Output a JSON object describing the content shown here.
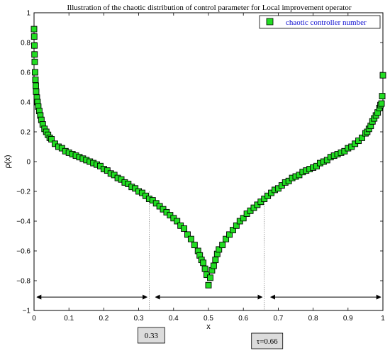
{
  "chart_data": {
    "type": "scatter",
    "title": "Illustration of the chaotic distribution of control parameter for Local improvement operator",
    "xlabel": "x",
    "ylabel": "ρ(x)",
    "xlim": [
      0,
      1
    ],
    "ylim": [
      -1,
      1
    ],
    "xticks": [
      "0",
      "0.1",
      "0.2",
      "0.3",
      "0.4",
      "0.5",
      "0.6",
      "0.7",
      "0.8",
      "0.9",
      "1"
    ],
    "yticks": [
      "1",
      "0.8",
      "0.6",
      "0.4",
      "0.2",
      "0",
      "−0.2",
      "−0.4",
      "−0.6",
      "−0.8",
      "−1"
    ],
    "grid": false,
    "legend_position": "top-right",
    "series": [
      {
        "name": "chaotic controller number",
        "marker": "square",
        "color": "#22dd22",
        "edge_color": "#000000",
        "x": [
          0.0,
          0.0005,
          0.001,
          0.0015,
          0.002,
          0.003,
          0.004,
          0.005,
          0.006,
          0.008,
          0.01,
          0.012,
          0.015,
          0.018,
          0.021,
          0.025,
          0.03,
          0.035,
          0.04,
          0.045,
          0.05,
          0.06,
          0.07,
          0.08,
          0.09,
          0.1,
          0.11,
          0.12,
          0.13,
          0.14,
          0.15,
          0.16,
          0.17,
          0.18,
          0.19,
          0.2,
          0.21,
          0.22,
          0.23,
          0.24,
          0.25,
          0.26,
          0.27,
          0.28,
          0.29,
          0.3,
          0.31,
          0.32,
          0.33,
          0.34,
          0.35,
          0.36,
          0.37,
          0.38,
          0.39,
          0.4,
          0.41,
          0.42,
          0.43,
          0.44,
          0.45,
          0.46,
          0.47,
          0.475,
          0.48,
          0.485,
          0.49,
          0.495,
          0.5,
          0.505,
          0.51,
          0.515,
          0.52,
          0.525,
          0.53,
          0.54,
          0.55,
          0.56,
          0.57,
          0.58,
          0.59,
          0.6,
          0.61,
          0.62,
          0.63,
          0.64,
          0.65,
          0.66,
          0.67,
          0.68,
          0.69,
          0.7,
          0.71,
          0.72,
          0.73,
          0.74,
          0.75,
          0.76,
          0.77,
          0.78,
          0.79,
          0.8,
          0.81,
          0.82,
          0.83,
          0.84,
          0.85,
          0.86,
          0.87,
          0.88,
          0.89,
          0.9,
          0.91,
          0.92,
          0.93,
          0.94,
          0.95,
          0.955,
          0.96,
          0.965,
          0.97,
          0.975,
          0.98,
          0.985,
          0.99,
          0.993,
          0.996,
          0.998,
          1.0
        ],
        "y": [
          0.89,
          0.84,
          0.78,
          0.72,
          0.67,
          0.6,
          0.55,
          0.51,
          0.47,
          0.43,
          0.4,
          0.37,
          0.34,
          0.31,
          0.28,
          0.25,
          0.22,
          0.2,
          0.18,
          0.16,
          0.15,
          0.12,
          0.1,
          0.09,
          0.07,
          0.06,
          0.05,
          0.04,
          0.03,
          0.02,
          0.01,
          0.0,
          -0.01,
          -0.02,
          -0.03,
          -0.05,
          -0.06,
          -0.08,
          -0.09,
          -0.11,
          -0.12,
          -0.14,
          -0.15,
          -0.17,
          -0.18,
          -0.2,
          -0.21,
          -0.23,
          -0.25,
          -0.26,
          -0.28,
          -0.3,
          -0.32,
          -0.34,
          -0.36,
          -0.38,
          -0.4,
          -0.43,
          -0.45,
          -0.49,
          -0.52,
          -0.56,
          -0.6,
          -0.63,
          -0.66,
          -0.68,
          -0.72,
          -0.76,
          -0.83,
          -0.78,
          -0.73,
          -0.7,
          -0.66,
          -0.62,
          -0.59,
          -0.56,
          -0.52,
          -0.49,
          -0.46,
          -0.43,
          -0.4,
          -0.38,
          -0.35,
          -0.33,
          -0.31,
          -0.29,
          -0.27,
          -0.25,
          -0.23,
          -0.21,
          -0.19,
          -0.18,
          -0.16,
          -0.14,
          -0.13,
          -0.11,
          -0.1,
          -0.09,
          -0.07,
          -0.06,
          -0.05,
          -0.04,
          -0.03,
          -0.01,
          0.0,
          0.01,
          0.03,
          0.04,
          0.05,
          0.06,
          0.07,
          0.09,
          0.1,
          0.12,
          0.14,
          0.16,
          0.19,
          0.2,
          0.22,
          0.24,
          0.27,
          0.29,
          0.31,
          0.33,
          0.36,
          0.38,
          0.39,
          0.44,
          0.58
        ]
      }
    ],
    "annotations": [
      {
        "type": "vline",
        "x": 0.33,
        "label": "0.33"
      },
      {
        "type": "vline",
        "x": 0.66,
        "label": "τ=0.66"
      },
      {
        "type": "double_arrow",
        "x_start": 0.0,
        "x_end": 0.33,
        "y": -0.91
      },
      {
        "type": "double_arrow",
        "x_start": 0.34,
        "x_end": 0.66,
        "y": -0.91
      },
      {
        "type": "double_arrow",
        "x_start": 0.67,
        "x_end": 1.0,
        "y": -0.91
      }
    ]
  }
}
